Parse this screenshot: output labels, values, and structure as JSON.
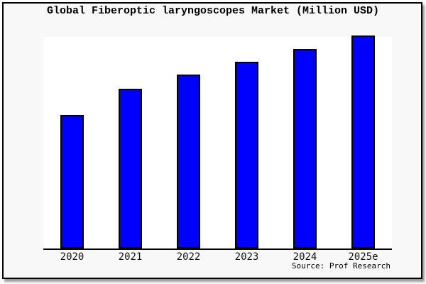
{
  "chart_data": {
    "type": "bar",
    "title": "Global Fiberoptic laryngoscopes Market (Million USD)",
    "categories": [
      "2020",
      "2021",
      "2022",
      "2023",
      "2024",
      "2025e"
    ],
    "values": [
      188,
      225,
      245,
      263,
      281,
      300
    ],
    "value_note": "No y-axis ticks, gridlines or data labels are shown in the chart; values are relative bar heights estimated in pixels from the plot (baseline = 0).",
    "xlabel": "",
    "ylabel": "",
    "ylim": [
      0,
      300
    ],
    "grid": false,
    "legend": null,
    "bar_color": "#0000ff",
    "bar_edge_color": "#000000",
    "plot_background": "#ffffff",
    "panel_background": "#f8f8f8",
    "axis_color": "#000000"
  },
  "source": {
    "text": "Source: Prof Research"
  }
}
